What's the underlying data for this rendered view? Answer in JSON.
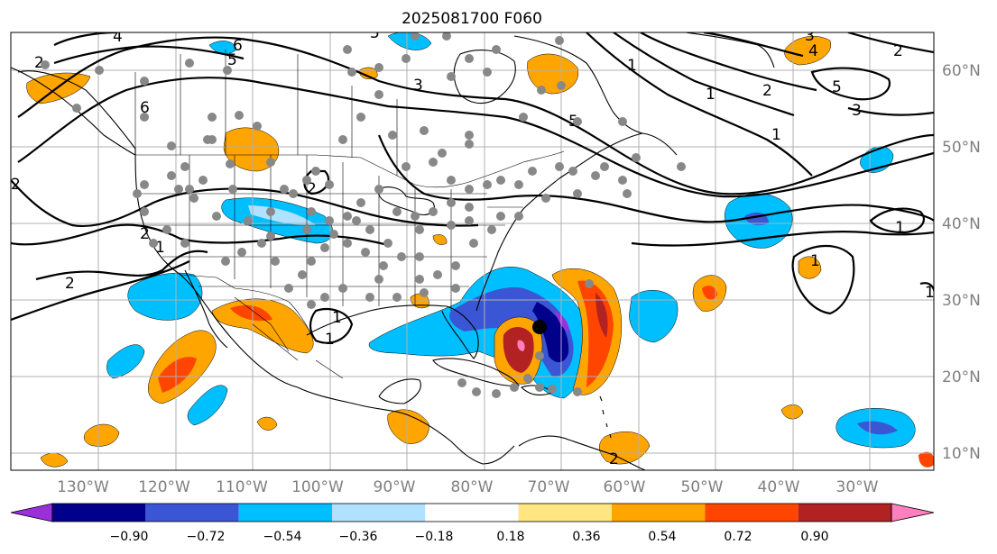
{
  "title": "2025081700 F060",
  "lon_labels": [
    "130°W",
    "120°W",
    "110°W",
    "100°W",
    "90°W",
    "80°W",
    "70°W",
    "60°W",
    "50°W",
    "40°W",
    "30°W"
  ],
  "lat_labels": [
    "60°N",
    "50°N",
    "40°N",
    "30°N",
    "20°N",
    "10°N"
  ],
  "colorbar": {
    "ticks": [
      "−0.90",
      "−0.72",
      "−0.54",
      "−0.36",
      "−0.18",
      "0.18",
      "0.36",
      "0.54",
      "0.72",
      "0.90"
    ],
    "colors": [
      "#9b30d9",
      "#00008b",
      "#3a56d4",
      "#00bfff",
      "#b0e2ff",
      "#ffffff",
      "#ffe680",
      "#ffa500",
      "#ff4500",
      "#b22222",
      "#ff7fbf"
    ]
  },
  "contour_labels": [
    "4",
    "6",
    "5",
    "3",
    "2",
    "6",
    "5",
    "1",
    "2",
    "3",
    "1",
    "4",
    "5",
    "3",
    "2",
    "2",
    "2",
    "1",
    "1",
    "1",
    "1",
    "1",
    "2",
    "1",
    "2",
    "5",
    "2",
    "1"
  ],
  "storm_marker": "tropical-cyclone-center"
}
